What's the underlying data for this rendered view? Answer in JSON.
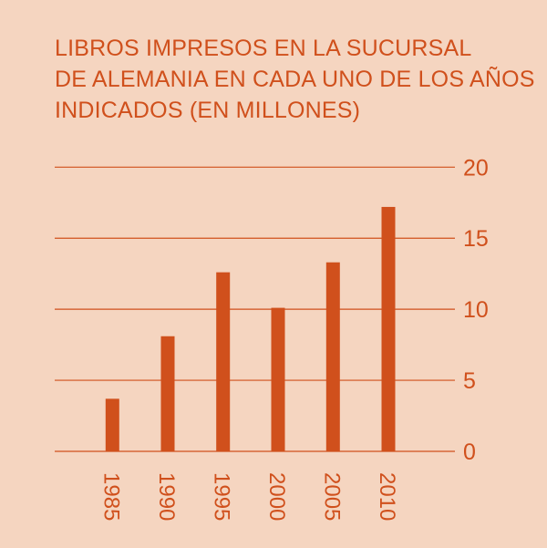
{
  "colors": {
    "background": "#f5d5c0",
    "accent": "#d0501c"
  },
  "chart_data": {
    "type": "bar",
    "title_lines": [
      "LIBROS IMPRESOS EN LA SUCURSAL",
      "DE ALEMANIA EN CADA UNO DE LOS AÑOS",
      "INDICADOS (EN MILLONES)"
    ],
    "categories": [
      "1985",
      "1990",
      "1995",
      "2000",
      "2005",
      "2010"
    ],
    "values": [
      3.7,
      8.1,
      12.6,
      10.1,
      13.3,
      17.2
    ],
    "xlabel": "",
    "ylabel": "",
    "ylim": [
      0,
      20
    ],
    "yticks": [
      "0",
      "5",
      "10",
      "15",
      "20"
    ],
    "y_axis_position": "right",
    "x_tick_rotation": "vertical",
    "grid": true,
    "legend": "none"
  }
}
